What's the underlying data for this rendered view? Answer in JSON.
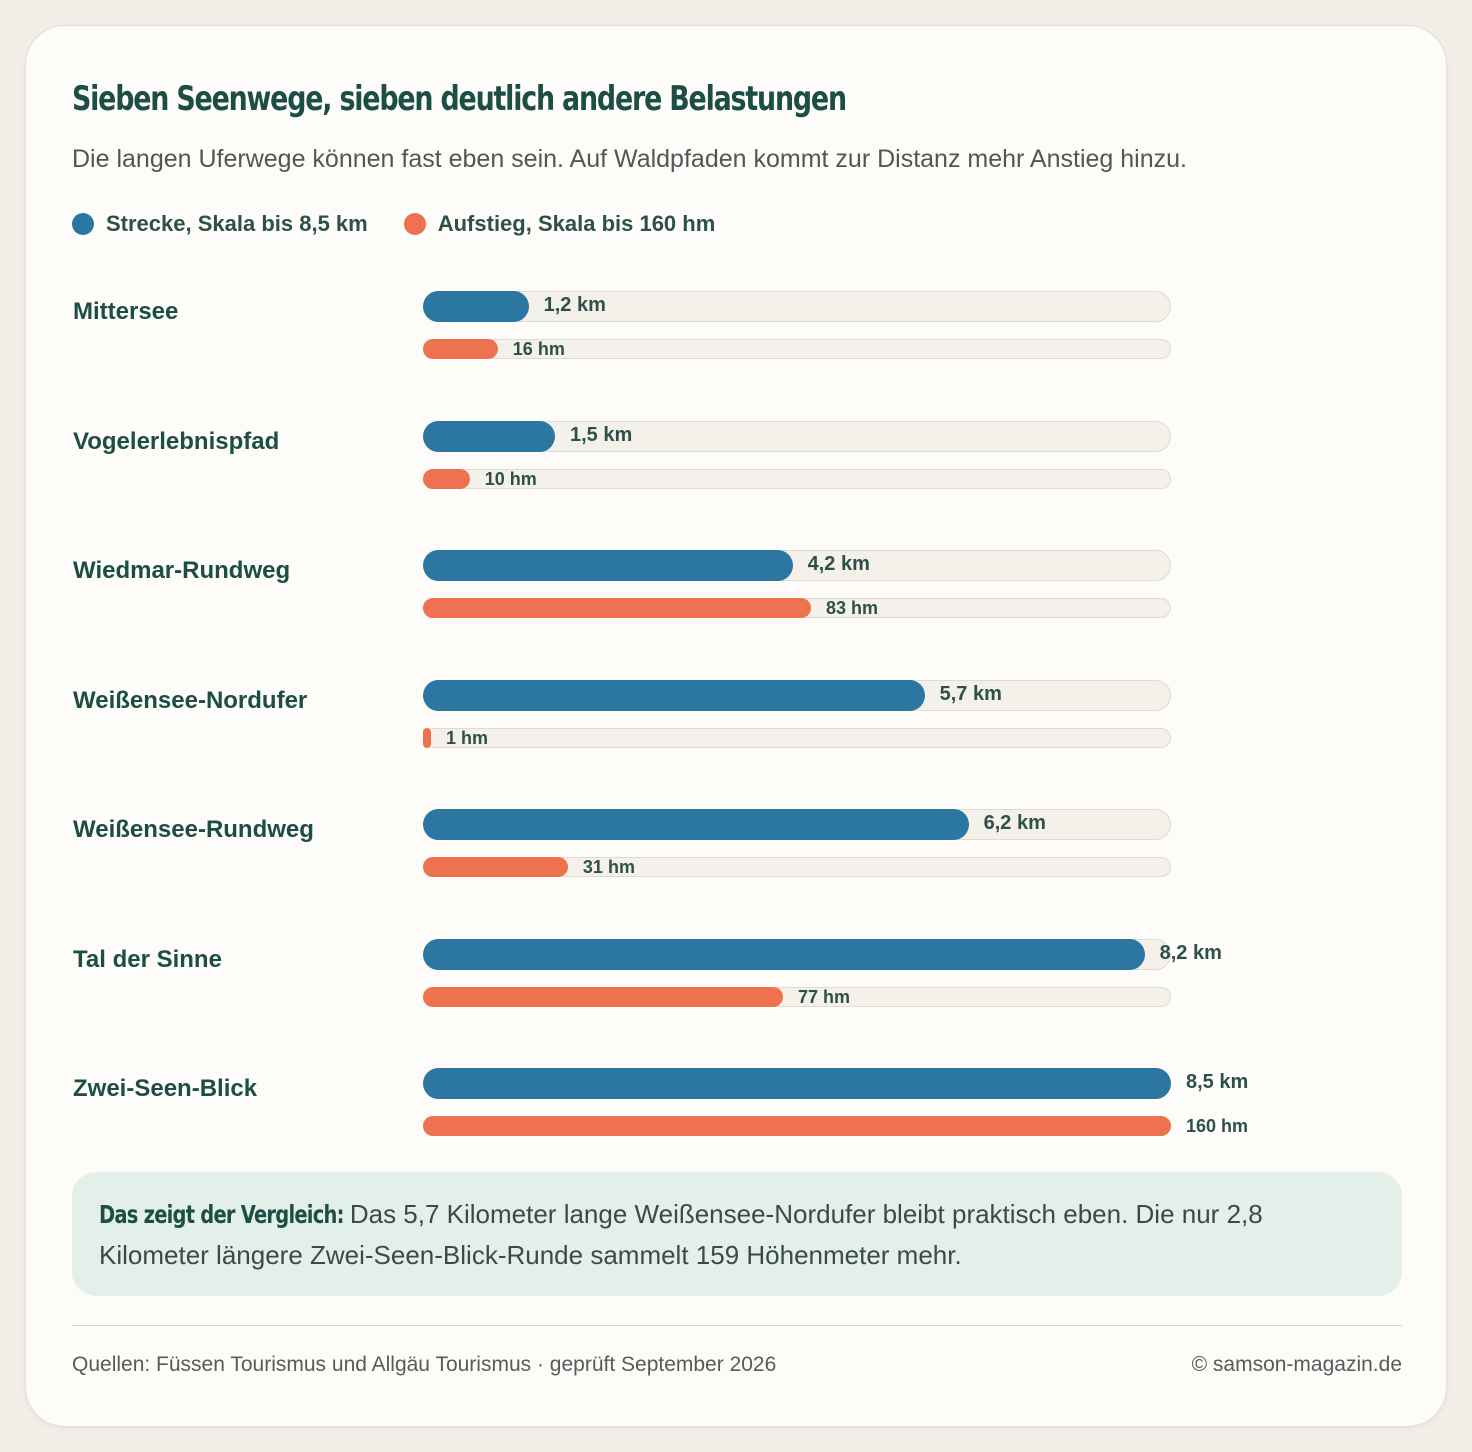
{
  "header": {
    "title": "Sieben Seenwege, sieben deutlich andere Belastungen",
    "subtitle": "Die langen Uferwege können fast eben sein. Auf Waldpfaden kommt zur Distanz mehr Anstieg hinzu."
  },
  "legend": {
    "distance_label": "Strecke, Skala bis 8,5 km",
    "ascent_label": "Aufstieg, Skala bis 160 hm"
  },
  "colors": {
    "distance": "#2b77a2",
    "ascent": "#ee7150",
    "heading": "#1d4e45",
    "track": "#f3f1ea",
    "note_bg": "#e3f0ea"
  },
  "chart_data": {
    "type": "bar",
    "orientation": "horizontal",
    "categories": [
      "Mittersee",
      "Vogelerlebnispfad",
      "Wiedmar-Rundweg",
      "Weißensee-Nordufer",
      "Weißensee-Rundweg",
      "Tal der Sinne",
      "Zwei-Seen-Blick"
    ],
    "series": [
      {
        "name": "Strecke, Skala bis 8,5 km",
        "unit": "km",
        "max": 8.5,
        "values": [
          1.2,
          1.5,
          4.2,
          5.7,
          6.2,
          8.2,
          8.5
        ],
        "labels": [
          "1,2 km",
          "1,5 km",
          "4,2 km",
          "5,7 km",
          "6,2 km",
          "8,2 km",
          "8,5 km"
        ]
      },
      {
        "name": "Aufstieg, Skala bis 160 hm",
        "unit": "hm",
        "max": 160,
        "values": [
          16,
          10,
          83,
          1,
          31,
          77,
          160
        ],
        "labels": [
          "16 hm",
          "10 hm",
          "83 hm",
          "1 hm",
          "31 hm",
          "77 hm",
          "160 hm"
        ]
      }
    ]
  },
  "note": {
    "label": "Das zeigt der Vergleich:",
    "text": "Das 5,7 Kilometer lange Weißensee-Nordufer bleibt praktisch eben. Die nur 2,8 Kilometer längere Zwei-Seen-Blick-Runde sammelt 159 Höhenmeter mehr."
  },
  "footer": {
    "source": "Quellen: Füssen Tourismus und Allgäu Tourismus · geprüft September 2026",
    "copyright": "© samson-magazin.de"
  }
}
